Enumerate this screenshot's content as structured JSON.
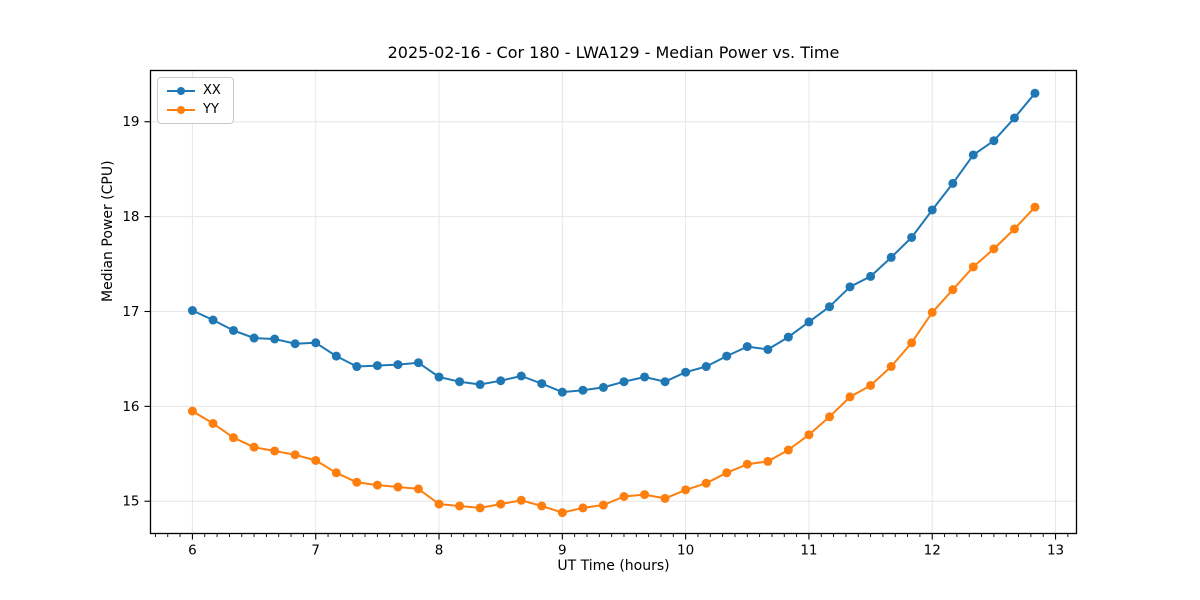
{
  "chart_data": {
    "type": "line",
    "title": "2025-02-16 - Cor 180 - LWA129 - Median Power vs. Time",
    "xlabel": "UT Time (hours)",
    "ylabel": "Median Power (CPU)",
    "xlim": [
      5.66,
      13.17
    ],
    "ylim": [
      14.66,
      19.54
    ],
    "x_ticks": [
      6,
      7,
      8,
      9,
      10,
      11,
      12,
      13
    ],
    "y_ticks": [
      15,
      16,
      17,
      18,
      19
    ],
    "x_minor_tick_step": 0.1,
    "grid": true,
    "grid_color": "#e6e6e6",
    "spine_color": "#000000",
    "legend_position": "upper-left",
    "marker": "circle",
    "x": [
      6.0,
      6.167,
      6.333,
      6.5,
      6.667,
      6.833,
      7.0,
      7.167,
      7.333,
      7.5,
      7.667,
      7.833,
      8.0,
      8.167,
      8.333,
      8.5,
      8.667,
      8.833,
      9.0,
      9.167,
      9.333,
      9.5,
      9.667,
      9.833,
      10.0,
      10.167,
      10.333,
      10.5,
      10.667,
      10.833,
      11.0,
      11.167,
      11.333,
      11.5,
      11.667,
      11.833,
      12.0,
      12.167,
      12.333,
      12.5,
      12.667,
      12.833
    ],
    "series": [
      {
        "name": "XX",
        "color": "#1f77b4",
        "values": [
          17.01,
          16.91,
          16.8,
          16.72,
          16.71,
          16.66,
          16.67,
          16.53,
          16.42,
          16.43,
          16.44,
          16.46,
          16.31,
          16.26,
          16.23,
          16.27,
          16.32,
          16.24,
          16.15,
          16.17,
          16.2,
          16.26,
          16.31,
          16.26,
          16.36,
          16.42,
          16.53,
          16.63,
          16.6,
          16.73,
          16.89,
          17.05,
          17.26,
          17.37,
          17.57,
          17.78,
          18.07,
          18.35,
          18.65,
          18.8,
          19.04,
          19.3
        ]
      },
      {
        "name": "YY",
        "color": "#ff7f0e",
        "values": [
          15.95,
          15.82,
          15.67,
          15.57,
          15.53,
          15.49,
          15.43,
          15.3,
          15.2,
          15.17,
          15.15,
          15.13,
          14.97,
          14.95,
          14.93,
          14.97,
          15.01,
          14.95,
          14.88,
          14.93,
          14.96,
          15.05,
          15.07,
          15.03,
          15.12,
          15.19,
          15.3,
          15.39,
          15.42,
          15.54,
          15.7,
          15.89,
          16.1,
          16.22,
          16.42,
          16.67,
          16.99,
          17.23,
          17.47,
          17.66,
          17.87,
          18.1
        ]
      }
    ]
  }
}
